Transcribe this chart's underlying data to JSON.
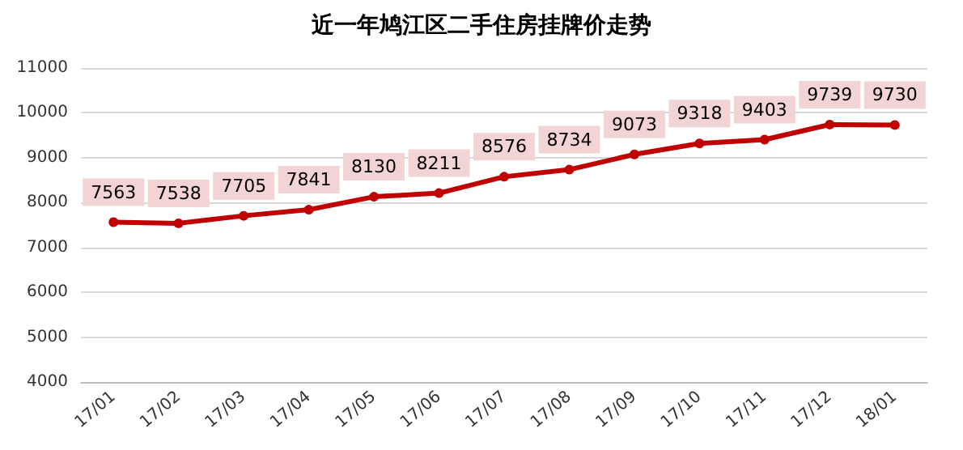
{
  "chart_data": {
    "type": "line",
    "title": "近一年鸠江区二手住房挂牌价走势",
    "categories": [
      "17/01",
      "17/02",
      "17/03",
      "17/04",
      "17/05",
      "17/06",
      "17/07",
      "17/08",
      "17/09",
      "17/10",
      "17/11",
      "17/12",
      "18/01"
    ],
    "series": [
      {
        "color": "#c00000",
        "values": [
          7563,
          7538,
          7705,
          7841,
          8130,
          8211,
          8576,
          8734,
          9073,
          9318,
          9403,
          9739,
          9730
        ]
      }
    ],
    "ylim": [
      4000,
      11000
    ],
    "yticks": [
      4000,
      5000,
      6000,
      7000,
      8000,
      9000,
      10000,
      11000
    ],
    "grid": "y",
    "marker": "circle",
    "line_style": "solid",
    "data_labels": true
  }
}
